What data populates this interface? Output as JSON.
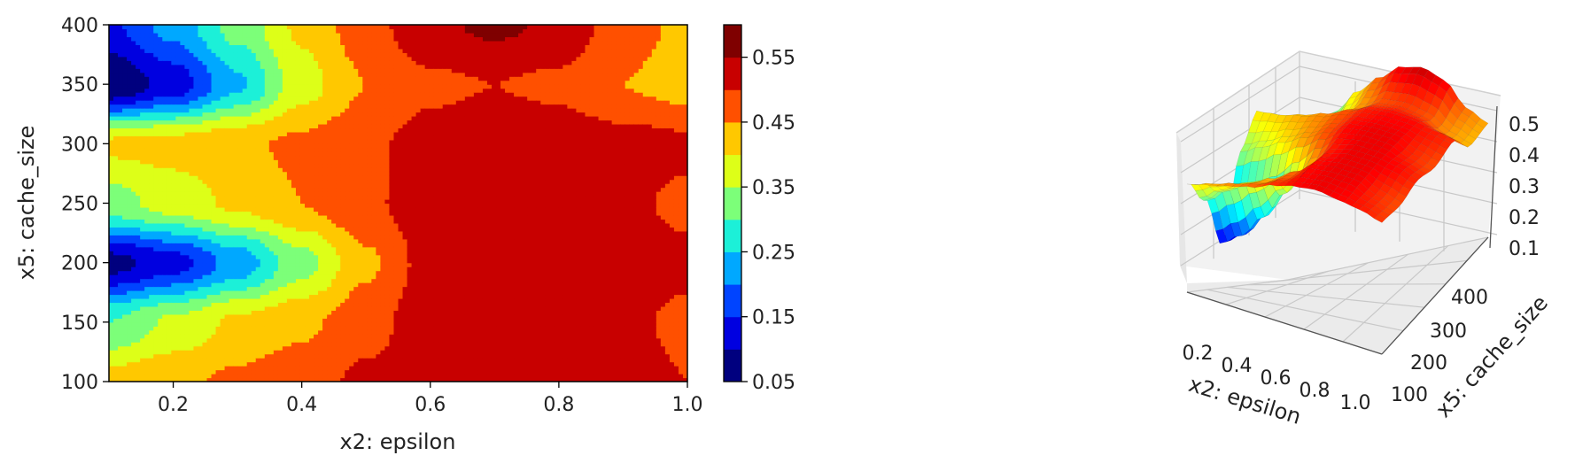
{
  "chart_data": [
    {
      "type": "contour",
      "xlabel": "x2: epsilon",
      "ylabel": "x5: cache_size",
      "xlim": [
        0.1,
        1.0
      ],
      "ylim": [
        100,
        400
      ],
      "xticks": [
        "0.2",
        "0.4",
        "0.6",
        "0.8",
        "1.0"
      ],
      "yticks": [
        "100",
        "150",
        "200",
        "250",
        "300",
        "350",
        "400"
      ],
      "colormap": "jet",
      "levels": [
        0.05,
        0.1,
        0.15,
        0.2,
        0.25,
        0.3,
        0.35,
        0.4,
        0.45,
        0.5,
        0.55,
        0.6
      ],
      "colorbar_ticks": [
        "0.05",
        "0.15",
        "0.25",
        "0.35",
        "0.45",
        "0.55"
      ],
      "level_colors": [
        "#00007f",
        "#0000e0",
        "#0044ff",
        "#00a8ff",
        "#1cf0d8",
        "#7cff79",
        "#ddff18",
        "#ffc800",
        "#ff5000",
        "#c80000",
        "#7f0000"
      ],
      "field_samples": {
        "x": [
          0.1,
          0.2,
          0.3,
          0.4,
          0.5,
          0.6,
          0.7,
          0.8,
          0.9,
          1.0
        ],
        "y": [
          100,
          150,
          200,
          250,
          300,
          350,
          400
        ],
        "z": [
          [
            0.42,
            0.44,
            0.46,
            0.48,
            0.51,
            0.53,
            0.54,
            0.53,
            0.52,
            0.5
          ],
          [
            0.3,
            0.36,
            0.41,
            0.44,
            0.48,
            0.53,
            0.54,
            0.54,
            0.51,
            0.49
          ],
          [
            0.08,
            0.13,
            0.22,
            0.33,
            0.44,
            0.52,
            0.54,
            0.54,
            0.53,
            0.51
          ],
          [
            0.33,
            0.37,
            0.41,
            0.45,
            0.49,
            0.53,
            0.54,
            0.54,
            0.51,
            0.49
          ],
          [
            0.41,
            0.42,
            0.44,
            0.46,
            0.49,
            0.52,
            0.53,
            0.53,
            0.52,
            0.51
          ],
          [
            0.05,
            0.12,
            0.24,
            0.38,
            0.45,
            0.49,
            0.5,
            0.49,
            0.45,
            0.43
          ],
          [
            0.14,
            0.22,
            0.32,
            0.41,
            0.48,
            0.54,
            0.56,
            0.54,
            0.47,
            0.44
          ]
        ]
      }
    },
    {
      "type": "surface3d",
      "xlabel": "x2: epsilon",
      "ylabel": "x5: cache_size",
      "xticks": [
        "0.2",
        "0.4",
        "0.6",
        "0.8",
        "1.0"
      ],
      "yticks": [
        "100",
        "200",
        "300",
        "400"
      ],
      "zticks": [
        "0.1",
        "0.2",
        "0.3",
        "0.4",
        "0.5"
      ],
      "colormap": "jet"
    }
  ]
}
